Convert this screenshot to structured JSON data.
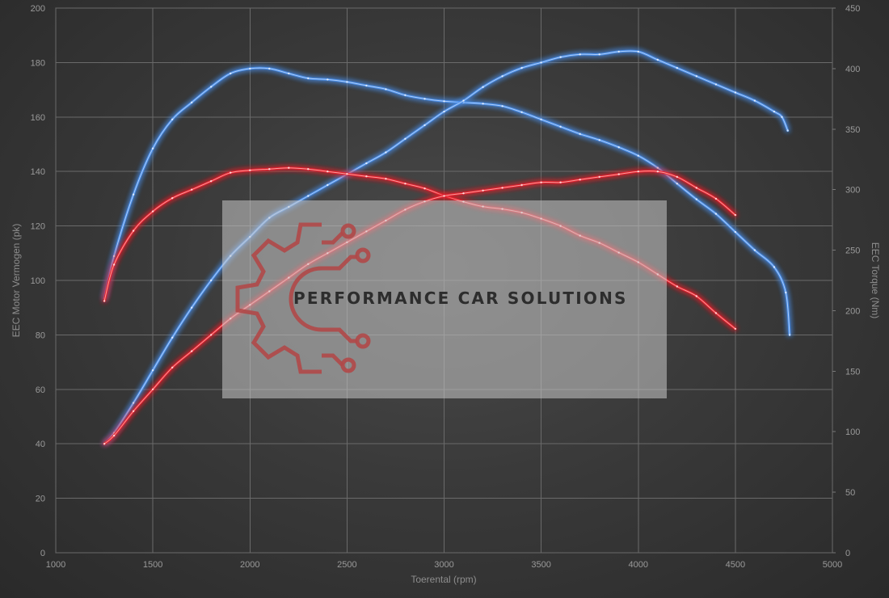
{
  "chart_data": {
    "type": "line",
    "xlabel": "Toerental (rpm)",
    "ylabel_left": "EEC Motor Vermogen (pk)",
    "ylabel_right": "EEC Torque (Nm)",
    "xlim": [
      1000,
      5000
    ],
    "ylim_left": [
      0,
      200
    ],
    "ylim_right": [
      0,
      450
    ],
    "x_ticks": [
      1000,
      1500,
      2000,
      2500,
      3000,
      3500,
      4000,
      4500,
      5000
    ],
    "y_left_ticks": [
      0,
      20,
      40,
      60,
      80,
      100,
      120,
      140,
      160,
      180,
      200
    ],
    "y_right_ticks": [
      0,
      50,
      100,
      150,
      200,
      250,
      300,
      350,
      400,
      450
    ],
    "grid": true,
    "colors": {
      "blue": "#4a8eea",
      "red": "#e8202a"
    },
    "series": [
      {
        "axis": "right",
        "color": "#4a8eea",
        "x": [
          1250,
          1300,
          1400,
          1500,
          1600,
          1700,
          1800,
          1900,
          2000,
          2100,
          2200,
          2300,
          2400,
          2500,
          2600,
          2700,
          2800,
          2900,
          3000,
          3100,
          3200,
          3300,
          3400,
          3500,
          3600,
          3700,
          3800,
          3900,
          4000,
          4100,
          4200,
          4300,
          4400,
          4500,
          4600,
          4700,
          4760,
          4780
        ],
        "values": [
          210,
          245,
          296,
          334,
          358,
          372,
          385,
          396,
          400,
          400,
          396,
          392,
          391,
          389,
          386,
          383,
          378,
          375,
          373,
          372,
          371,
          369,
          364,
          358,
          352,
          346,
          341,
          335,
          328,
          318,
          305,
          292,
          280,
          265,
          250,
          236,
          215,
          180
        ]
      },
      {
        "axis": "left",
        "color": "#4a8eea",
        "x": [
          1250,
          1300,
          1400,
          1500,
          1600,
          1700,
          1800,
          1900,
          2000,
          2100,
          2200,
          2300,
          2400,
          2500,
          2600,
          2700,
          2800,
          2900,
          3000,
          3100,
          3200,
          3300,
          3400,
          3500,
          3600,
          3700,
          3800,
          3900,
          4000,
          4100,
          4200,
          4300,
          4400,
          4500,
          4600,
          4700,
          4740,
          4770
        ],
        "values": [
          40,
          44,
          55,
          67,
          79,
          90,
          100,
          109,
          116,
          123,
          127,
          131,
          135,
          139,
          143,
          147,
          152,
          157,
          162,
          166,
          171,
          175,
          178,
          180,
          182,
          183,
          183,
          184,
          184,
          181,
          178,
          175,
          172,
          169,
          166,
          162,
          160,
          155
        ]
      },
      {
        "axis": "right",
        "color": "#e8202a",
        "x": [
          1250,
          1300,
          1400,
          1500,
          1600,
          1700,
          1800,
          1900,
          2000,
          2100,
          2200,
          2300,
          2400,
          2500,
          2600,
          2700,
          2800,
          2900,
          3000,
          3100,
          3200,
          3300,
          3400,
          3500,
          3600,
          3700,
          3800,
          3900,
          4000,
          4100,
          4200,
          4300,
          4400,
          4500
        ],
        "values": [
          208,
          238,
          266,
          282,
          293,
          300,
          307,
          314,
          316,
          317,
          318,
          317,
          315,
          313,
          311,
          309,
          305,
          301,
          295,
          290,
          286,
          284,
          281,
          276,
          270,
          262,
          256,
          248,
          240,
          230,
          220,
          212,
          198,
          185
        ]
      },
      {
        "axis": "left",
        "color": "#e8202a",
        "x": [
          1250,
          1300,
          1400,
          1500,
          1600,
          1700,
          1800,
          1900,
          2000,
          2100,
          2200,
          2300,
          2400,
          2500,
          2600,
          2700,
          2800,
          2900,
          3000,
          3100,
          3200,
          3300,
          3400,
          3500,
          3600,
          3700,
          3800,
          3900,
          4000,
          4100,
          4200,
          4300,
          4400,
          4500
        ],
        "values": [
          40,
          43,
          52,
          60,
          68,
          74,
          80,
          86,
          91,
          96,
          101,
          106,
          110,
          114,
          118,
          122,
          126,
          129,
          131,
          132,
          133,
          134,
          135,
          136,
          136,
          137,
          138,
          139,
          140,
          140,
          138,
          134,
          130,
          124
        ]
      }
    ],
    "watermark": "PERFORMANCE CAR SOLUTIONS"
  }
}
